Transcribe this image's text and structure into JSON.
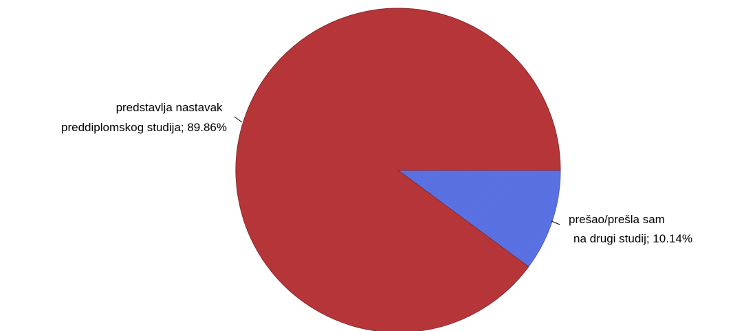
{
  "colors": {
    "red": "#b9373a",
    "blue": "#5b73e4",
    "stroke": "#7a1f22"
  },
  "chart_data": {
    "type": "pie",
    "title": "",
    "slices": [
      {
        "name": "predstavlja nastavak preddiplomskog studija",
        "value": 89.86,
        "label_lines": [
          "predstavlja nastavak",
          "preddiplomskog studija; 89.86%"
        ],
        "color": "#b9373a"
      },
      {
        "name": "prešao/prešla sam na drugi studij",
        "value": 10.14,
        "label_lines": [
          "prešao/prešla sam",
          "na drugi studij; 10.14%"
        ],
        "color": "#5b73e4"
      }
    ]
  }
}
